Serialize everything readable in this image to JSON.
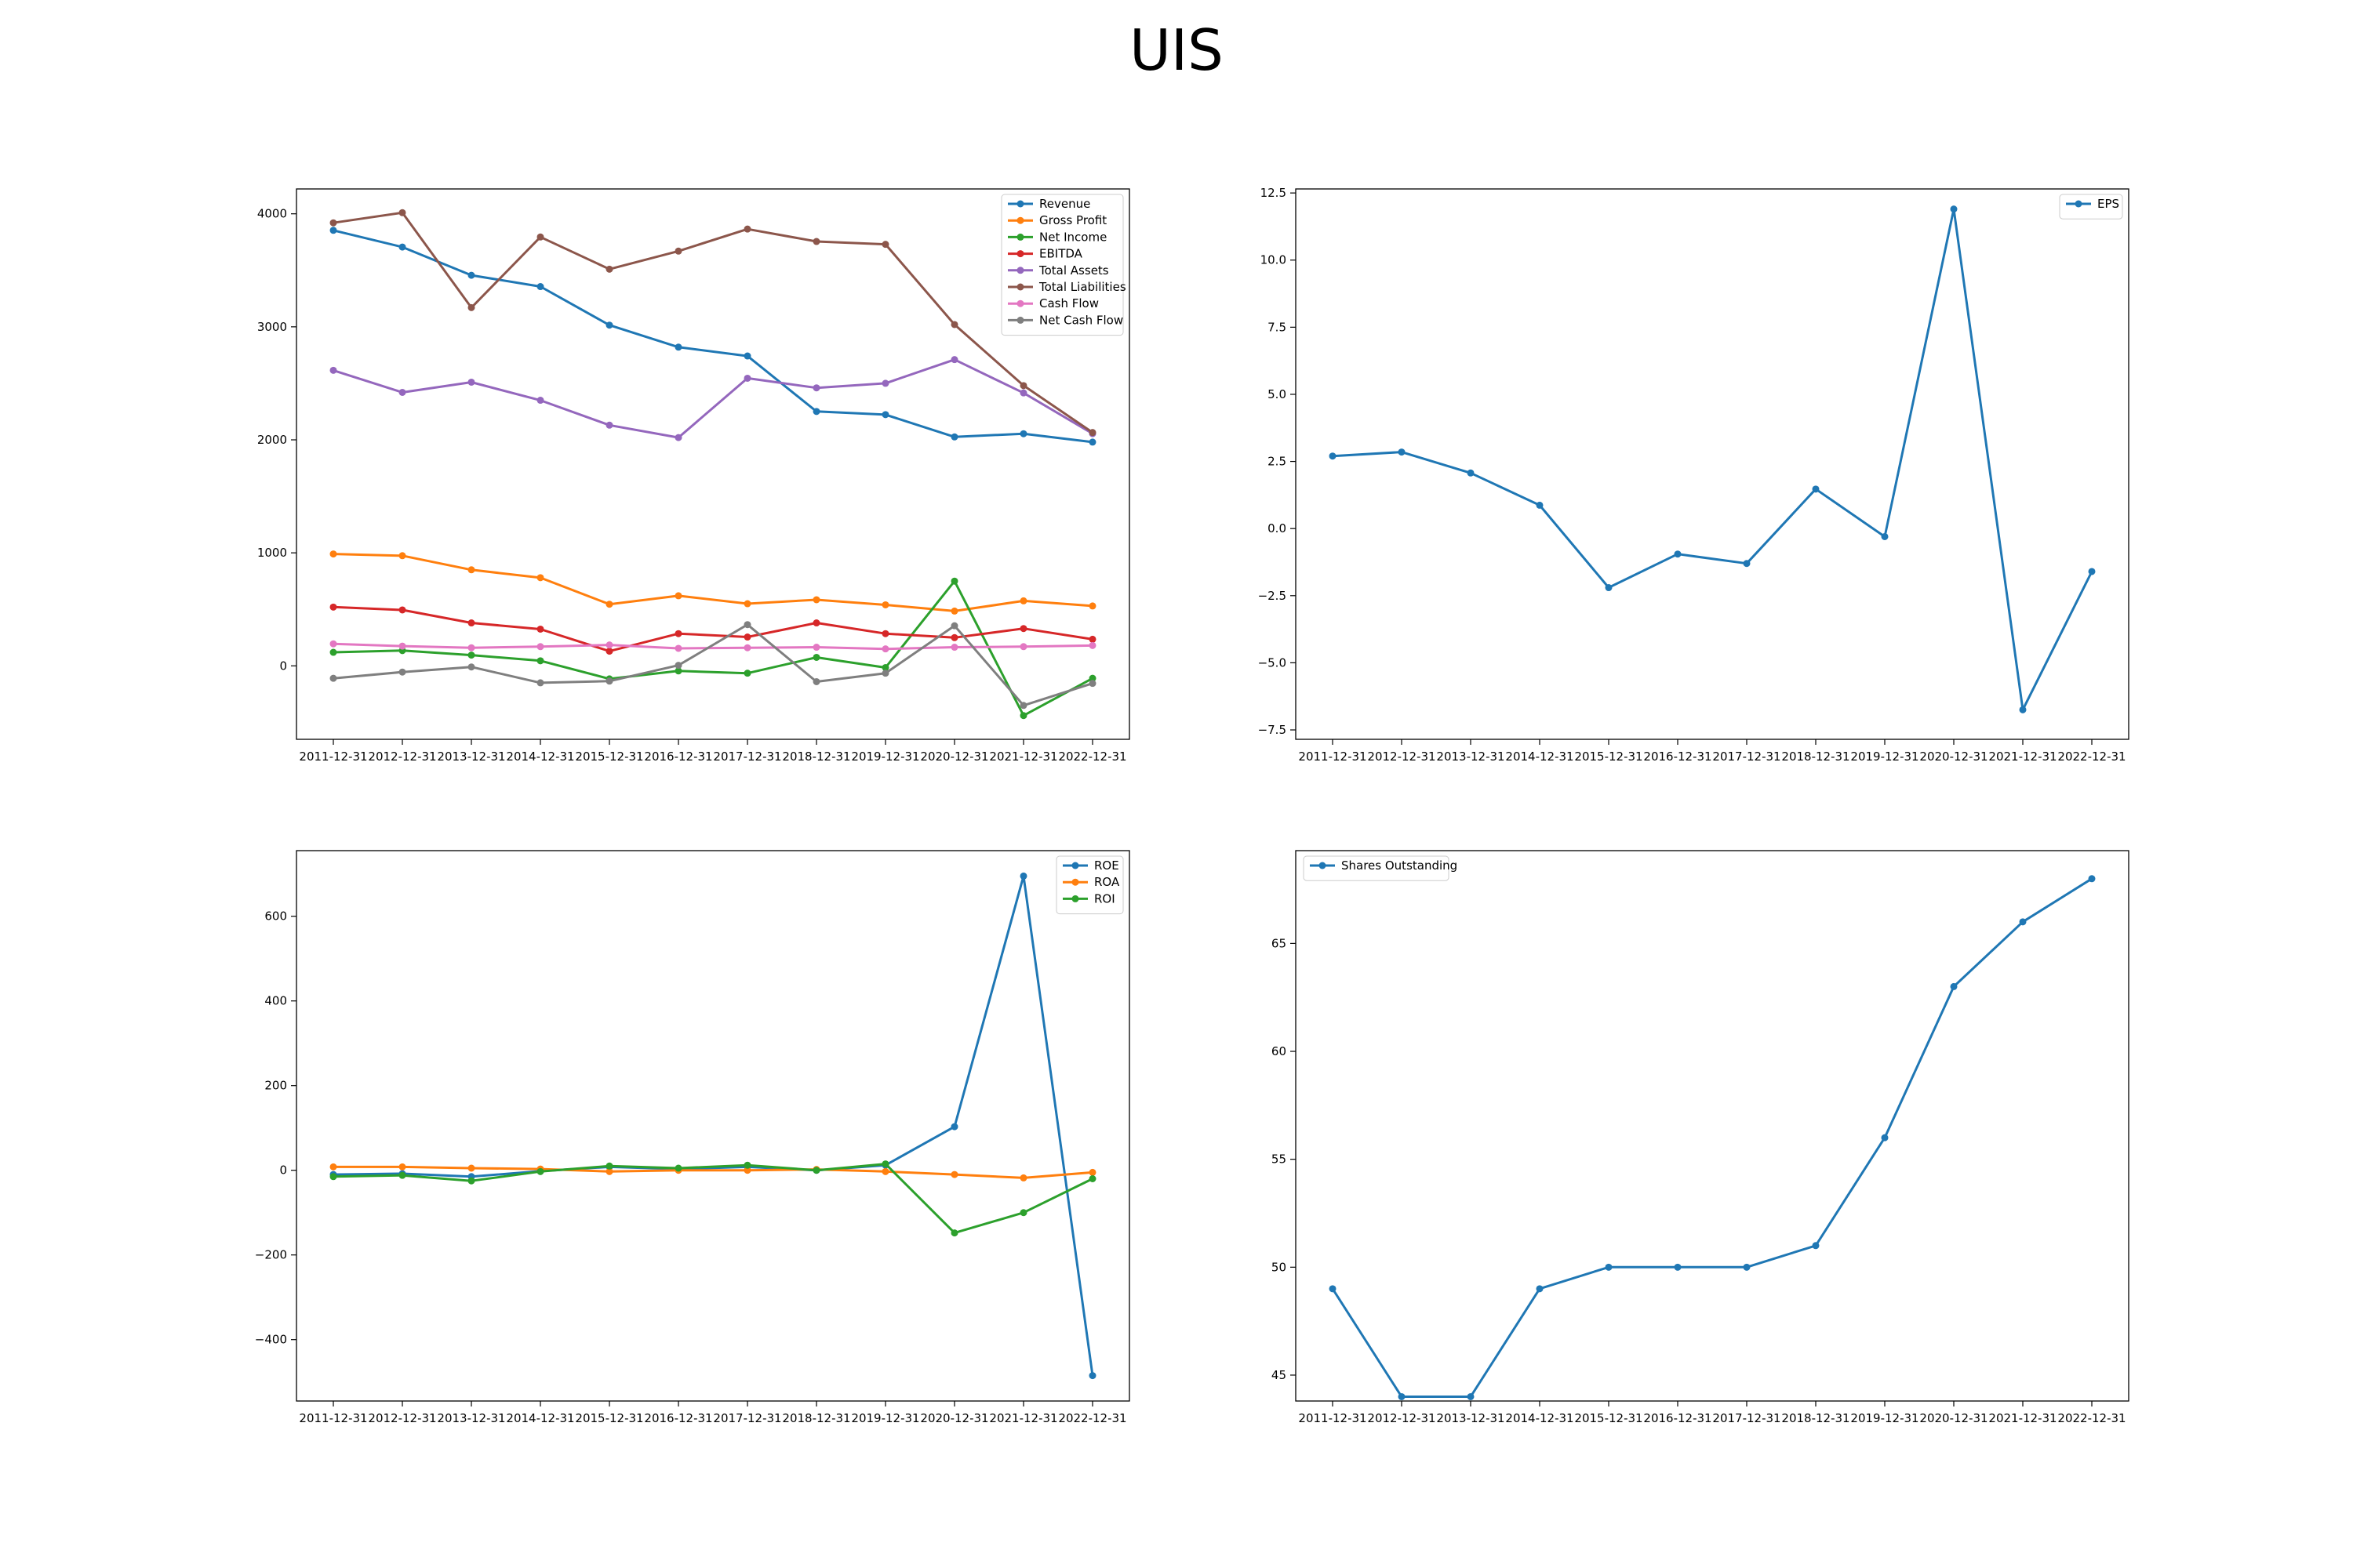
{
  "title": "UIS",
  "colors": {
    "blue": "#1f77b4",
    "orange": "#ff7f0e",
    "green": "#2ca02c",
    "red": "#d62728",
    "purple": "#9467bd",
    "brown": "#8c564b",
    "pink": "#e377c2",
    "gray": "#7f7f7f"
  },
  "chart_data": [
    {
      "type": "line",
      "categories": [
        "2011-12-31",
        "2012-12-31",
        "2013-12-31",
        "2014-12-31",
        "2015-12-31",
        "2016-12-31",
        "2017-12-31",
        "2018-12-31",
        "2019-12-31",
        "2020-12-31",
        "2021-12-31",
        "2022-12-31"
      ],
      "ylim": [
        -650,
        4220
      ],
      "yticks": [
        0,
        1000,
        2000,
        3000,
        4000
      ],
      "yticklabels": [
        "0",
        "1000",
        "2000",
        "3000",
        "4000"
      ],
      "legend_position": "top-right",
      "grid": false,
      "series": [
        {
          "name": "Revenue",
          "color": "#1f77b4",
          "values": [
            3854,
            3706,
            3456,
            3356,
            3015,
            2820,
            2742,
            2251,
            2223,
            2026,
            2054,
            1980
          ]
        },
        {
          "name": "Gross Profit",
          "color": "#ff7f0e",
          "values": [
            990,
            975,
            850,
            780,
            545,
            620,
            550,
            585,
            540,
            485,
            575,
            530
          ]
        },
        {
          "name": "Net Income",
          "color": "#2ca02c",
          "values": [
            120,
            135,
            95,
            45,
            -115,
            -45,
            -65,
            75,
            -15,
            750,
            -440,
            -110
          ]
        },
        {
          "name": "EBITDA",
          "color": "#d62728",
          "values": [
            520,
            495,
            380,
            325,
            130,
            285,
            255,
            380,
            285,
            250,
            330,
            235
          ]
        },
        {
          "name": "Total Assets",
          "color": "#9467bd",
          "values": [
            2615,
            2420,
            2510,
            2350,
            2130,
            2020,
            2545,
            2460,
            2500,
            2710,
            2415,
            2055
          ]
        },
        {
          "name": "Total Liabilities",
          "color": "#8c564b",
          "values": [
            3920,
            4010,
            3170,
            3795,
            3510,
            3670,
            3865,
            3755,
            3730,
            3020,
            2480,
            2065
          ]
        },
        {
          "name": "Cash Flow",
          "color": "#e377c2",
          "values": [
            195,
            175,
            160,
            170,
            185,
            155,
            160,
            165,
            150,
            165,
            170,
            180
          ]
        },
        {
          "name": "Net Cash Flow",
          "color": "#7f7f7f",
          "values": [
            -110,
            -55,
            -10,
            -150,
            -135,
            5,
            365,
            -140,
            -65,
            355,
            -350,
            -155
          ]
        }
      ]
    },
    {
      "type": "line",
      "categories": [
        "2011-12-31",
        "2012-12-31",
        "2013-12-31",
        "2014-12-31",
        "2015-12-31",
        "2016-12-31",
        "2017-12-31",
        "2018-12-31",
        "2019-12-31",
        "2020-12-31",
        "2021-12-31",
        "2022-12-31"
      ],
      "ylim": [
        -7.85,
        12.65
      ],
      "yticks": [
        -7.5,
        -5.0,
        -2.5,
        0.0,
        2.5,
        5.0,
        7.5,
        10.0,
        12.5
      ],
      "yticklabels": [
        "−7.5",
        "−5.0",
        "−2.5",
        "0.0",
        "2.5",
        "5.0",
        "7.5",
        "10.0",
        "12.5"
      ],
      "legend_position": "top-right",
      "grid": false,
      "series": [
        {
          "name": "EPS",
          "color": "#1f77b4",
          "values": [
            2.7,
            2.85,
            2.07,
            0.87,
            -2.2,
            -0.95,
            -1.3,
            1.47,
            -0.3,
            11.9,
            -6.75,
            -1.6
          ]
        }
      ]
    },
    {
      "type": "line",
      "categories": [
        "2011-12-31",
        "2012-12-31",
        "2013-12-31",
        "2014-12-31",
        "2015-12-31",
        "2016-12-31",
        "2017-12-31",
        "2018-12-31",
        "2019-12-31",
        "2020-12-31",
        "2021-12-31",
        "2022-12-31"
      ],
      "ylim": [
        -545,
        755
      ],
      "yticks": [
        -400,
        -200,
        0,
        200,
        400,
        600
      ],
      "yticklabels": [
        "−400",
        "−200",
        "0",
        "200",
        "400",
        "600"
      ],
      "legend_position": "top-right",
      "grid": false,
      "series": [
        {
          "name": "ROE",
          "color": "#1f77b4",
          "values": [
            -10,
            -8,
            -15,
            -2,
            8,
            3,
            8,
            0,
            12,
            103,
            695,
            -485
          ]
        },
        {
          "name": "ROA",
          "color": "#ff7f0e",
          "values": [
            8,
            8,
            5,
            3,
            -3,
            0,
            0,
            2,
            -3,
            -10,
            -18,
            -5
          ]
        },
        {
          "name": "ROI",
          "color": "#2ca02c",
          "values": [
            -15,
            -12,
            -25,
            -3,
            10,
            5,
            12,
            0,
            15,
            -148,
            -100,
            -20
          ]
        }
      ]
    },
    {
      "type": "line",
      "categories": [
        "2011-12-31",
        "2012-12-31",
        "2013-12-31",
        "2014-12-31",
        "2015-12-31",
        "2016-12-31",
        "2017-12-31",
        "2018-12-31",
        "2019-12-31",
        "2020-12-31",
        "2021-12-31",
        "2022-12-31"
      ],
      "ylim": [
        43.8,
        69.3
      ],
      "yticks": [
        45,
        50,
        55,
        60,
        65
      ],
      "yticklabels": [
        "45",
        "50",
        "55",
        "60",
        "65"
      ],
      "legend_position": "top-left",
      "grid": false,
      "series": [
        {
          "name": "Shares Outstanding",
          "color": "#1f77b4",
          "values": [
            49,
            44,
            44,
            49,
            50,
            50,
            50,
            51,
            56,
            63,
            66,
            68
          ]
        }
      ]
    }
  ]
}
